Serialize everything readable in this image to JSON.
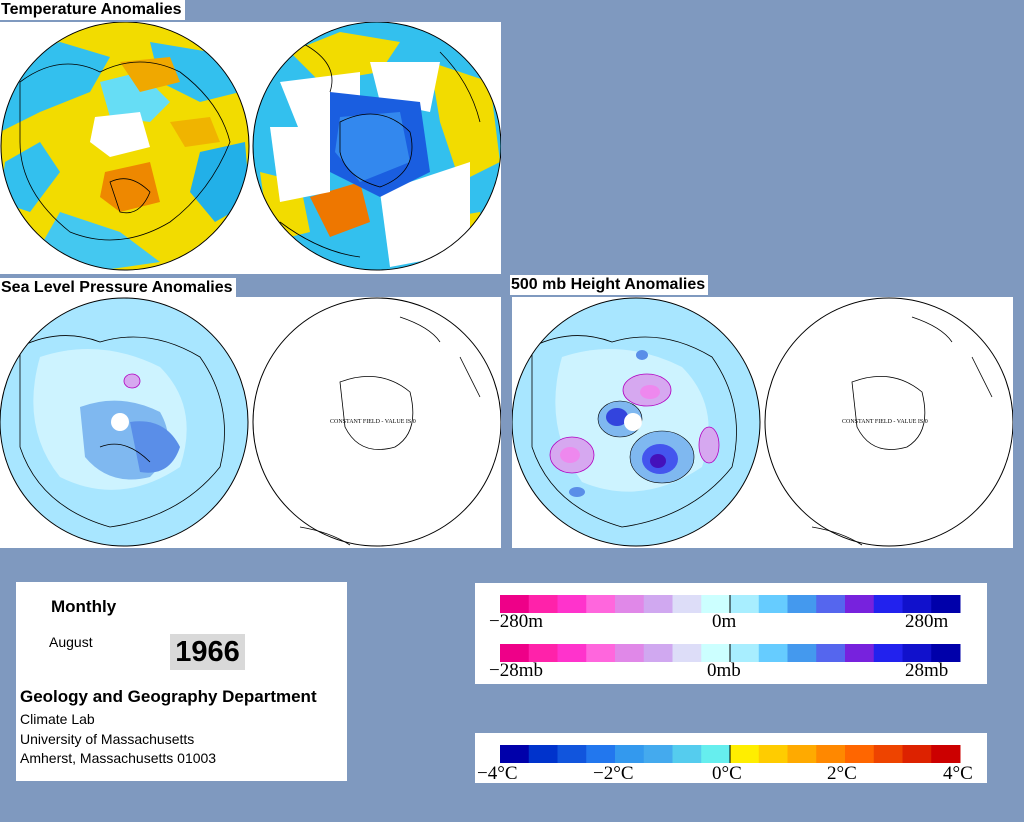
{
  "titles": {
    "temperature": "Temperature Anomalies",
    "slp": "Sea Level Pressure Anomalies",
    "height500": "500 mb Height Anomalies"
  },
  "maps": {
    "constant_field_label": "CONSTANT FIELD - VALUE IS 0"
  },
  "info": {
    "period": "Monthly",
    "month": "August",
    "year": "1966",
    "department": "Geology and Geography Department",
    "lab": "Climate Lab",
    "university": "University of Massachusetts",
    "address": "Amherst, Massachusetts 01003"
  },
  "height_scale": {
    "labels": [
      "−280m",
      "0m",
      "280m"
    ],
    "colors": [
      "#ee0088",
      "#ff22aa",
      "#ff33cc",
      "#ff66dd",
      "#e088e8",
      "#d0a8f0",
      "#ddddf8",
      "#ccffff",
      "#a8eeff",
      "#66ccff",
      "#4499ee",
      "#5566ee",
      "#7722dd",
      "#2222ee",
      "#1111cc",
      "#0000aa"
    ]
  },
  "pressure_scale": {
    "labels": [
      "−28mb",
      "0mb",
      "28mb"
    ],
    "colors": [
      "#ee0088",
      "#ff22aa",
      "#ff33cc",
      "#ff66dd",
      "#e088e8",
      "#d0a8f0",
      "#ddddf8",
      "#ccffff",
      "#a8eeff",
      "#66ccff",
      "#4499ee",
      "#5566ee",
      "#7722dd",
      "#2222ee",
      "#1111cc",
      "#0000aa"
    ]
  },
  "temperature_scale": {
    "labels": [
      "−4°C",
      "−2°C",
      "0°C",
      "2°C",
      "4°C"
    ],
    "colors": [
      "#0000aa",
      "#0033cc",
      "#1155dd",
      "#2277ee",
      "#3399ee",
      "#44aaee",
      "#55ccee",
      "#66eeee",
      "#ffee00",
      "#ffcc00",
      "#ffaa00",
      "#ff8800",
      "#ff6600",
      "#ee4400",
      "#dd2200",
      "#cc0000"
    ]
  }
}
